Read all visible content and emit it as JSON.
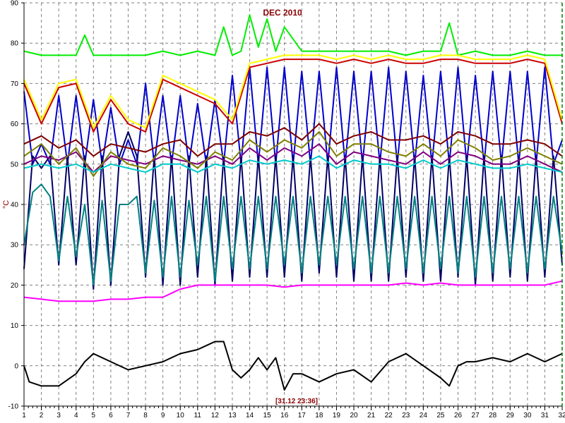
{
  "chart_data": {
    "type": "line",
    "title": "DEC 2010",
    "ylabel": "°C",
    "cursor_label": "[31.12 23:36]",
    "xlim": [
      1,
      32
    ],
    "ylim": [
      -10,
      90
    ],
    "x_ticks": [
      "1",
      "2",
      "3",
      "4",
      "5",
      "6",
      "7",
      "8",
      "9",
      "10",
      "11",
      "12",
      "13",
      "14",
      "15",
      "16",
      "17",
      "18",
      "19",
      "20",
      "21",
      "22",
      "23",
      "24",
      "25",
      "26",
      "27",
      "28",
      "29",
      "30",
      "31",
      "32"
    ],
    "y_ticks": [
      "-10",
      "0",
      "10",
      "20",
      "30",
      "40",
      "50",
      "60",
      "70",
      "80",
      "90"
    ],
    "grid": true,
    "colors": {
      "axis": "#000000",
      "grid": "#808080",
      "cursor": "#008000",
      "title": "#8b0000"
    },
    "series": [
      {
        "color": "#00ee00",
        "x": [
          1,
          2,
          3,
          4,
          4.5,
          5,
          6,
          7,
          8,
          9,
          10,
          11,
          12,
          12.5,
          13,
          13.5,
          14,
          14.5,
          15,
          15.5,
          16,
          17,
          18,
          19,
          20,
          21,
          22,
          23,
          24,
          25,
          25.5,
          26,
          27,
          28,
          29,
          30,
          31,
          32
        ],
        "y": [
          78,
          77,
          77,
          77,
          82,
          77,
          77,
          77,
          77,
          78,
          77,
          78,
          77,
          84,
          77,
          78,
          87,
          79,
          86,
          78,
          84,
          78,
          78,
          78,
          78,
          78,
          78,
          77,
          78,
          78,
          85,
          77,
          78,
          77,
          77,
          78,
          77,
          77
        ]
      },
      {
        "color": "#0000cc",
        "x": [
          1,
          1.5,
          2,
          2.5,
          3,
          3.5,
          4,
          4.5,
          5,
          5.5,
          6,
          6.5,
          7,
          7.5,
          8,
          8.5,
          9,
          9.5,
          10,
          10.5,
          11,
          11.5,
          12,
          12.5,
          13,
          13.5,
          14,
          14.5,
          15,
          15.5,
          16,
          16.5,
          17,
          17.5,
          18,
          18.5,
          19,
          19.5,
          20,
          20.5,
          21,
          21.5,
          22,
          22.5,
          23,
          23.5,
          24,
          24.5,
          25,
          25.5,
          26,
          26.5,
          27,
          27.5,
          28,
          28.5,
          29,
          29.5,
          30,
          30.5,
          31,
          31.5,
          32
        ],
        "y": [
          68,
          50,
          55,
          50,
          67,
          50,
          67,
          50,
          66,
          50,
          64,
          50,
          56,
          50,
          70,
          50,
          67,
          50,
          67,
          50,
          65,
          50,
          66,
          50,
          72,
          50,
          74,
          50,
          74,
          50,
          74,
          50,
          73,
          50,
          73,
          50,
          74,
          50,
          73,
          50,
          73,
          50,
          74,
          50,
          73,
          50,
          72,
          50,
          73,
          50,
          74,
          50,
          72,
          50,
          73,
          50,
          73,
          50,
          73,
          50,
          74,
          50,
          56
        ]
      },
      {
        "color": "#000066",
        "x": [
          1,
          1.5,
          2,
          2.5,
          3,
          3.5,
          4,
          4.5,
          5,
          5.5,
          6,
          6.5,
          7,
          7.5,
          8,
          8.5,
          9,
          9.5,
          10,
          10.5,
          11,
          11.5,
          12,
          12.5,
          13,
          13.5,
          14,
          14.5,
          15,
          15.5,
          16,
          16.5,
          17,
          17.5,
          18,
          18.5,
          19,
          19.5,
          20,
          20.5,
          21,
          21.5,
          22,
          22.5,
          23,
          23.5,
          24,
          24.5,
          25,
          25.5,
          26,
          26.5,
          27,
          27.5,
          28,
          28.5,
          29,
          29.5,
          30,
          30.5,
          31,
          31.5,
          32
        ],
        "y": [
          24,
          52,
          49,
          52,
          25,
          52,
          25,
          52,
          19,
          52,
          20,
          52,
          58,
          52,
          22,
          52,
          20,
          52,
          20,
          52,
          22,
          52,
          20,
          52,
          21,
          52,
          22,
          52,
          22,
          52,
          22,
          52,
          21,
          52,
          23,
          52,
          22,
          52,
          21,
          52,
          21,
          52,
          21,
          52,
          22,
          52,
          21,
          52,
          21,
          52,
          22,
          52,
          20,
          52,
          21,
          52,
          22,
          52,
          21,
          52,
          22,
          52,
          25
        ]
      },
      {
        "color": "#008080",
        "x": [
          1,
          1.5,
          2,
          2.5,
          3,
          3.5,
          4,
          4.5,
          5,
          5.5,
          6,
          6.5,
          7,
          7.5,
          8,
          8.5,
          9,
          9.5,
          10,
          10.5,
          11,
          11.5,
          12,
          12.5,
          13,
          13.5,
          14,
          14.5,
          15,
          15.5,
          16,
          16.5,
          17,
          17.5,
          18,
          18.5,
          19,
          19.5,
          20,
          20.5,
          21,
          21.5,
          22,
          22.5,
          23,
          23.5,
          24,
          24.5,
          25,
          25.5,
          26,
          26.5,
          27,
          27.5,
          28,
          28.5,
          29,
          29.5,
          30,
          30.5,
          31,
          31.5,
          32
        ],
        "y": [
          30,
          43,
          45,
          42,
          26,
          42,
          27,
          40,
          20,
          41,
          21,
          40,
          40,
          42,
          23,
          41,
          22,
          42,
          22,
          41,
          25,
          42,
          21,
          42,
          24,
          42,
          24,
          42,
          24,
          42,
          25,
          42,
          23,
          42,
          25,
          42,
          25,
          42,
          24,
          42,
          23,
          42,
          23,
          42,
          24,
          42,
          23,
          42,
          24,
          42,
          23,
          42,
          22,
          42,
          23,
          42,
          24,
          42,
          23,
          42,
          24,
          42,
          28
        ]
      },
      {
        "color": "#800000",
        "x": [
          1,
          2,
          3,
          4,
          5,
          6,
          7,
          8,
          9,
          10,
          11,
          12,
          13,
          14,
          15,
          16,
          17,
          18,
          19,
          20,
          21,
          22,
          23,
          24,
          25,
          26,
          27,
          28,
          29,
          30,
          31,
          32
        ],
        "y": [
          55,
          57,
          54,
          56,
          52,
          55,
          54,
          53,
          55,
          56,
          52,
          55,
          55,
          58,
          57,
          59,
          56,
          60,
          55,
          57,
          58,
          56,
          56,
          57,
          55,
          58,
          57,
          55,
          55,
          56,
          55,
          52
        ]
      },
      {
        "color": "#800080",
        "x": [
          1,
          2,
          3,
          4,
          5,
          6,
          7,
          8,
          9,
          10,
          11,
          12,
          13,
          14,
          15,
          16,
          17,
          18,
          19,
          20,
          21,
          22,
          23,
          24,
          25,
          26,
          27,
          28,
          29,
          30,
          31,
          32
        ],
        "y": [
          50,
          52,
          51,
          53,
          48,
          52,
          51,
          50,
          52,
          51,
          50,
          52,
          50,
          54,
          51,
          54,
          52,
          55,
          50,
          53,
          52,
          51,
          50,
          53,
          50,
          53,
          52,
          50,
          50,
          52,
          50,
          48
        ]
      },
      {
        "color": "#808000",
        "x": [
          1,
          2,
          3,
          4,
          5,
          6,
          7,
          8,
          9,
          10,
          11,
          12,
          13,
          14,
          15,
          16,
          17,
          18,
          19,
          20,
          21,
          22,
          23,
          24,
          25,
          26,
          27,
          28,
          29,
          30,
          31,
          32
        ],
        "y": [
          52,
          55,
          50,
          54,
          47,
          53,
          50,
          49,
          54,
          52,
          49,
          53,
          51,
          56,
          53,
          56,
          54,
          58,
          52,
          55,
          55,
          53,
          52,
          55,
          52,
          56,
          54,
          51,
          52,
          54,
          52,
          50
        ]
      },
      {
        "color": "#00cccc",
        "x": [
          1,
          2,
          3,
          4,
          5,
          6,
          7,
          8,
          9,
          10,
          11,
          12,
          13,
          14,
          15,
          16,
          17,
          18,
          19,
          20,
          21,
          22,
          23,
          24,
          25,
          26,
          27,
          28,
          29,
          30,
          31,
          32
        ],
        "y": [
          49,
          50,
          49,
          50,
          48,
          50,
          49,
          48,
          50,
          50,
          48,
          50,
          49,
          51,
          50,
          51,
          50,
          52,
          49,
          51,
          50,
          50,
          49,
          51,
          49,
          51,
          50,
          49,
          49,
          50,
          49,
          48
        ]
      },
      {
        "color": "#cc0000",
        "x": [
          1,
          2,
          3,
          4,
          5,
          6,
          7,
          8,
          9,
          10,
          11,
          12,
          13,
          14,
          15,
          16,
          17,
          18,
          19,
          20,
          21,
          22,
          23,
          24,
          25,
          26,
          27,
          28,
          29,
          30,
          31,
          32
        ],
        "y": [
          70,
          60,
          69,
          70,
          58,
          66,
          60,
          58,
          71,
          69,
          67,
          65,
          60,
          74,
          75,
          76,
          76,
          76,
          75,
          76,
          75,
          76,
          75,
          75,
          76,
          76,
          75,
          75,
          75,
          76,
          75,
          60
        ]
      },
      {
        "color": "#ffff00",
        "x": [
          1,
          2,
          3,
          4,
          5,
          6,
          7,
          8,
          9,
          10,
          11,
          12,
          13,
          14,
          15,
          16,
          17,
          18,
          19,
          20,
          21,
          22,
          23,
          24,
          25,
          26,
          27,
          28,
          29,
          30,
          31,
          32
        ],
        "y": [
          71,
          61,
          70,
          71,
          59,
          67,
          61,
          59,
          72,
          70,
          68,
          66,
          61,
          75,
          76,
          77,
          77,
          77,
          76,
          77,
          76,
          77,
          76,
          76,
          77,
          77,
          76,
          76,
          76,
          77,
          76,
          61
        ]
      },
      {
        "color": "#ff00ff",
        "x": [
          1,
          2,
          3,
          4,
          5,
          6,
          7,
          8,
          9,
          9.5,
          10,
          11,
          12,
          13,
          14,
          15,
          16,
          17,
          18,
          19,
          20,
          21,
          22,
          23,
          24,
          25,
          26,
          27,
          28,
          29,
          30,
          31,
          32
        ],
        "y": [
          17,
          16.5,
          16,
          16,
          16,
          16.5,
          16.5,
          17,
          17,
          18,
          19,
          20,
          20,
          20,
          20,
          20,
          19.5,
          20,
          20,
          20,
          20,
          20,
          20,
          20.5,
          20,
          20.5,
          20,
          20,
          20,
          20,
          20,
          20,
          21
        ]
      },
      {
        "color": "#000000",
        "x": [
          1,
          1.3,
          2,
          2.5,
          3,
          4,
          4.5,
          5,
          6,
          7,
          8,
          9,
          10,
          11,
          11.5,
          12,
          12.5,
          13,
          13.5,
          14,
          14.5,
          15,
          15.5,
          16,
          16.5,
          17,
          18,
          19,
          20,
          21,
          22,
          23,
          24,
          25,
          25.5,
          26,
          26.5,
          27,
          28,
          29,
          30,
          31,
          31.5,
          32
        ],
        "y": [
          0,
          -4,
          -5,
          -5,
          -5,
          -2,
          1,
          3,
          1,
          -1,
          0,
          1,
          3,
          4,
          5,
          6,
          6,
          -1,
          -3,
          -1,
          2,
          -1,
          2,
          -6,
          -2,
          -2,
          -4,
          -2,
          -1,
          -4,
          1,
          3,
          0,
          -3,
          -5,
          0,
          1,
          1,
          2,
          1,
          3,
          1,
          2,
          3
        ]
      }
    ]
  }
}
